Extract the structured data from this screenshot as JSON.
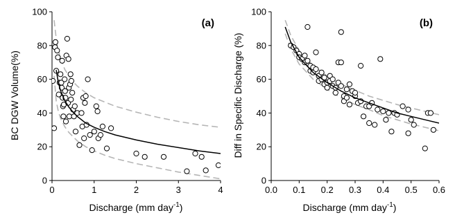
{
  "chart_data": [
    {
      "panel_label": "(a)",
      "type": "scatter",
      "xlabel": "Discharge (mm day⁻¹)",
      "ylabel": "BC DGW Volume(%)",
      "xlim": [
        0,
        4
      ],
      "ylim": [
        0,
        100
      ],
      "xticks": [
        "0",
        "1",
        "2",
        "3",
        "4"
      ],
      "yticks": [
        "0",
        "20",
        "40",
        "60",
        "80",
        "100"
      ],
      "grid": false,
      "legend": "none",
      "colors": {
        "points_edge": "#000000",
        "points_fill": "#ffffff",
        "fit": "#000000",
        "bounds": "#b5b5b5"
      },
      "points": [
        [
          0.02,
          59
        ],
        [
          0.05,
          31
        ],
        [
          0.07,
          79
        ],
        [
          0.08,
          82
        ],
        [
          0.1,
          65
        ],
        [
          0.12,
          77
        ],
        [
          0.14,
          73
        ],
        [
          0.16,
          51
        ],
        [
          0.18,
          58
        ],
        [
          0.2,
          63
        ],
        [
          0.22,
          58
        ],
        [
          0.23,
          55
        ],
        [
          0.24,
          71
        ],
        [
          0.25,
          49
        ],
        [
          0.26,
          44
        ],
        [
          0.27,
          38
        ],
        [
          0.28,
          45
        ],
        [
          0.3,
          60
        ],
        [
          0.31,
          53
        ],
        [
          0.32,
          49
        ],
        [
          0.33,
          35
        ],
        [
          0.34,
          74
        ],
        [
          0.36,
          84
        ],
        [
          0.38,
          46
        ],
        [
          0.39,
          72
        ],
        [
          0.4,
          55
        ],
        [
          0.41,
          38
        ],
        [
          0.43,
          57
        ],
        [
          0.44,
          63
        ],
        [
          0.45,
          48
        ],
        [
          0.46,
          59
        ],
        [
          0.48,
          52
        ],
        [
          0.5,
          42
        ],
        [
          0.52,
          38
        ],
        [
          0.54,
          44
        ],
        [
          0.56,
          29
        ],
        [
          0.6,
          40
        ],
        [
          0.65,
          21
        ],
        [
          0.7,
          40
        ],
        [
          0.72,
          32
        ],
        [
          0.74,
          49
        ],
        [
          0.76,
          25
        ],
        [
          0.78,
          46
        ],
        [
          0.8,
          50
        ],
        [
          0.82,
          33
        ],
        [
          0.85,
          60
        ],
        [
          0.9,
          27
        ],
        [
          0.95,
          18
        ],
        [
          1.0,
          29
        ],
        [
          1.05,
          44
        ],
        [
          1.08,
          41
        ],
        [
          1.1,
          25
        ],
        [
          1.15,
          27
        ],
        [
          1.2,
          32
        ],
        [
          1.3,
          19
        ],
        [
          1.4,
          31
        ],
        [
          2.0,
          16
        ],
        [
          2.2,
          14
        ],
        [
          2.65,
          14
        ],
        [
          3.2,
          5.5
        ],
        [
          3.4,
          16
        ],
        [
          3.55,
          14
        ],
        [
          3.65,
          6
        ],
        [
          3.95,
          9
        ]
      ],
      "fit_curve": [
        [
          0.1,
          65.5
        ],
        [
          0.15,
          58
        ],
        [
          0.2,
          53.5
        ],
        [
          0.3,
          47.5
        ],
        [
          0.4,
          43.5
        ],
        [
          0.5,
          40.5
        ],
        [
          0.6,
          38
        ],
        [
          0.8,
          34
        ],
        [
          1.0,
          31.5
        ],
        [
          1.25,
          29
        ],
        [
          1.5,
          27
        ],
        [
          2.0,
          24
        ],
        [
          2.5,
          21.5
        ],
        [
          3.0,
          19.5
        ],
        [
          3.5,
          17.5
        ],
        [
          4.0,
          16
        ]
      ],
      "upper_bound": [
        [
          0.05,
          95
        ],
        [
          0.1,
          84
        ],
        [
          0.15,
          77
        ],
        [
          0.2,
          73
        ],
        [
          0.3,
          66
        ],
        [
          0.4,
          62
        ],
        [
          0.5,
          58.5
        ],
        [
          0.6,
          56
        ],
        [
          0.8,
          52
        ],
        [
          1.0,
          49
        ],
        [
          1.25,
          46.5
        ],
        [
          1.5,
          44
        ],
        [
          2.0,
          40.5
        ],
        [
          2.5,
          37.5
        ],
        [
          3.0,
          35
        ],
        [
          3.5,
          33
        ],
        [
          4.0,
          31.5
        ]
      ],
      "lower_bound": [
        [
          0.05,
          62
        ],
        [
          0.1,
          47
        ],
        [
          0.15,
          41
        ],
        [
          0.2,
          37
        ],
        [
          0.3,
          32
        ],
        [
          0.4,
          28.5
        ],
        [
          0.5,
          26
        ],
        [
          0.6,
          23.5
        ],
        [
          0.8,
          20
        ],
        [
          1.0,
          17.5
        ],
        [
          1.25,
          15
        ],
        [
          1.5,
          13
        ],
        [
          2.0,
          10
        ],
        [
          2.5,
          7.5
        ],
        [
          3.0,
          5
        ],
        [
          3.5,
          3
        ],
        [
          4.0,
          1
        ]
      ]
    },
    {
      "panel_label": "(b)",
      "type": "scatter",
      "xlabel": "Discharge (mm day⁻¹)",
      "ylabel": "Diff in Specific Discharge (%)",
      "xlim": [
        0.0,
        0.6
      ],
      "ylim": [
        0,
        100
      ],
      "xticks": [
        "0.0",
        "0.1",
        "0.2",
        "0.3",
        "0.4",
        "0.5",
        "0.6"
      ],
      "yticks": [
        "0",
        "20",
        "40",
        "60",
        "80",
        "100"
      ],
      "grid": false,
      "legend": "none",
      "colors": {
        "points_edge": "#000000",
        "points_fill": "#ffffff",
        "fit": "#000000",
        "bounds": "#b5b5b5"
      },
      "points": [
        [
          0.07,
          80
        ],
        [
          0.08,
          79
        ],
        [
          0.09,
          77
        ],
        [
          0.1,
          75
        ],
        [
          0.1,
          73
        ],
        [
          0.11,
          72
        ],
        [
          0.12,
          74
        ],
        [
          0.12,
          70
        ],
        [
          0.13,
          71
        ],
        [
          0.13,
          91
        ],
        [
          0.14,
          68
        ],
        [
          0.14,
          65
        ],
        [
          0.15,
          67
        ],
        [
          0.15,
          64
        ],
        [
          0.16,
          66
        ],
        [
          0.16,
          76
        ],
        [
          0.17,
          62
        ],
        [
          0.17,
          59
        ],
        [
          0.18,
          64
        ],
        [
          0.18,
          60
        ],
        [
          0.19,
          61
        ],
        [
          0.19,
          57
        ],
        [
          0.2,
          58
        ],
        [
          0.2,
          55
        ],
        [
          0.21,
          62
        ],
        [
          0.21,
          59
        ],
        [
          0.22,
          60
        ],
        [
          0.22,
          56
        ],
        [
          0.23,
          55
        ],
        [
          0.23,
          52
        ],
        [
          0.24,
          58
        ],
        [
          0.24,
          70
        ],
        [
          0.25,
          88
        ],
        [
          0.25,
          70
        ],
        [
          0.25,
          56
        ],
        [
          0.26,
          50
        ],
        [
          0.26,
          47
        ],
        [
          0.27,
          54
        ],
        [
          0.27,
          49
        ],
        [
          0.28,
          57
        ],
        [
          0.28,
          45
        ],
        [
          0.29,
          53
        ],
        [
          0.3,
          50
        ],
        [
          0.3,
          52
        ],
        [
          0.31,
          46
        ],
        [
          0.32,
          47
        ],
        [
          0.32,
          68
        ],
        [
          0.33,
          38
        ],
        [
          0.34,
          44
        ],
        [
          0.35,
          44
        ],
        [
          0.35,
          34
        ],
        [
          0.36,
          46
        ],
        [
          0.37,
          33
        ],
        [
          0.38,
          42
        ],
        [
          0.39,
          72
        ],
        [
          0.4,
          41
        ],
        [
          0.41,
          36
        ],
        [
          0.42,
          40
        ],
        [
          0.43,
          29
        ],
        [
          0.44,
          40
        ],
        [
          0.45,
          39
        ],
        [
          0.47,
          44
        ],
        [
          0.49,
          42
        ],
        [
          0.49,
          28
        ],
        [
          0.5,
          36
        ],
        [
          0.51,
          33
        ],
        [
          0.55,
          19
        ],
        [
          0.56,
          40
        ],
        [
          0.57,
          40
        ],
        [
          0.58,
          30
        ]
      ],
      "fit_curve": [
        [
          0.05,
          91
        ],
        [
          0.07,
          82
        ],
        [
          0.1,
          73
        ],
        [
          0.15,
          64
        ],
        [
          0.2,
          58
        ],
        [
          0.25,
          53
        ],
        [
          0.3,
          49
        ],
        [
          0.35,
          46
        ],
        [
          0.4,
          43
        ],
        [
          0.45,
          40
        ],
        [
          0.5,
          38
        ],
        [
          0.55,
          36
        ],
        [
          0.6,
          34
        ]
      ],
      "upper_bound": [
        [
          0.05,
          95
        ],
        [
          0.07,
          86
        ],
        [
          0.1,
          77
        ],
        [
          0.15,
          68
        ],
        [
          0.2,
          62
        ],
        [
          0.25,
          57
        ],
        [
          0.3,
          53.5
        ],
        [
          0.35,
          50
        ],
        [
          0.4,
          47.5
        ],
        [
          0.45,
          45
        ],
        [
          0.5,
          43
        ],
        [
          0.55,
          41
        ],
        [
          0.6,
          39
        ]
      ],
      "lower_bound": [
        [
          0.05,
          87
        ],
        [
          0.07,
          78
        ],
        [
          0.1,
          69
        ],
        [
          0.15,
          60
        ],
        [
          0.2,
          54
        ],
        [
          0.25,
          49
        ],
        [
          0.3,
          45
        ],
        [
          0.35,
          42
        ],
        [
          0.4,
          38.5
        ],
        [
          0.45,
          36
        ],
        [
          0.5,
          33.5
        ],
        [
          0.55,
          31.5
        ],
        [
          0.6,
          29.5
        ]
      ]
    }
  ]
}
